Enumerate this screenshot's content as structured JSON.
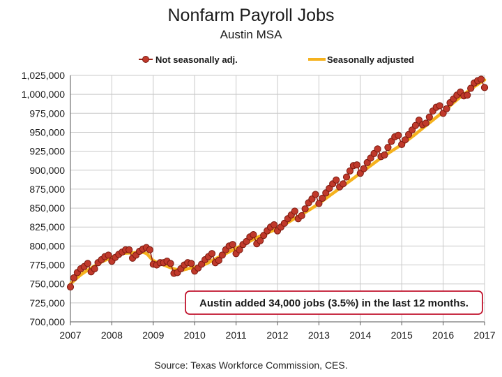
{
  "title": "Nonfarm Payroll Jobs",
  "subtitle": "Austin MSA",
  "source": "Source: Texas Workforce Commission, CES.",
  "annotation": "Austin added 34,000 jobs (3.5%) in the last 12 months.",
  "colors": {
    "nsa_fill": "#c0392b",
    "nsa_stroke": "#7b1a10",
    "sa_line": "#f5b21e",
    "grid": "#c8c8c8",
    "callout_border": "#c0122c"
  },
  "chart_data": {
    "type": "line",
    "title": "Nonfarm Payroll Jobs",
    "subtitle": "Austin MSA",
    "xlabel": "",
    "ylabel": "",
    "xlim": [
      2007,
      2017
    ],
    "ylim": [
      700000,
      1025000
    ],
    "x_ticks": [
      "2007",
      "2008",
      "2009",
      "2010",
      "2011",
      "2012",
      "2013",
      "2014",
      "2015",
      "2016",
      "2017"
    ],
    "y_ticks": [
      "700,000",
      "725,000",
      "750,000",
      "775,000",
      "800,000",
      "825,000",
      "850,000",
      "875,000",
      "900,000",
      "925,000",
      "950,000",
      "975,000",
      "1,000,000",
      "1,025,000"
    ],
    "grid": true,
    "legend_position": "top",
    "series": [
      {
        "name": "Not seasonally adj.",
        "style": "line-with-markers",
        "x": [
          2007.0,
          2007.083,
          2007.167,
          2007.25,
          2007.333,
          2007.417,
          2007.5,
          2007.583,
          2007.667,
          2007.75,
          2007.833,
          2007.917,
          2008.0,
          2008.083,
          2008.167,
          2008.25,
          2008.333,
          2008.417,
          2008.5,
          2008.583,
          2008.667,
          2008.75,
          2008.833,
          2008.917,
          2009.0,
          2009.083,
          2009.167,
          2009.25,
          2009.333,
          2009.417,
          2009.5,
          2009.583,
          2009.667,
          2009.75,
          2009.833,
          2009.917,
          2010.0,
          2010.083,
          2010.167,
          2010.25,
          2010.333,
          2010.417,
          2010.5,
          2010.583,
          2010.667,
          2010.75,
          2010.833,
          2010.917,
          2011.0,
          2011.083,
          2011.167,
          2011.25,
          2011.333,
          2011.417,
          2011.5,
          2011.583,
          2011.667,
          2011.75,
          2011.833,
          2011.917,
          2012.0,
          2012.083,
          2012.167,
          2012.25,
          2012.333,
          2012.417,
          2012.5,
          2012.583,
          2012.667,
          2012.75,
          2012.833,
          2012.917,
          2013.0,
          2013.083,
          2013.167,
          2013.25,
          2013.333,
          2013.417,
          2013.5,
          2013.583,
          2013.667,
          2013.75,
          2013.833,
          2013.917,
          2014.0,
          2014.083,
          2014.167,
          2014.25,
          2014.333,
          2014.417,
          2014.5,
          2014.583,
          2014.667,
          2014.75,
          2014.833,
          2014.917,
          2015.0,
          2015.083,
          2015.167,
          2015.25,
          2015.333,
          2015.417,
          2015.5,
          2015.583,
          2015.667,
          2015.75,
          2015.833,
          2015.917,
          2016.0,
          2016.083,
          2016.167,
          2016.25,
          2016.333,
          2016.417,
          2016.5,
          2016.583,
          2016.667,
          2016.75,
          2016.833,
          2016.917,
          2017.0
        ],
        "values": [
          746000,
          758000,
          765000,
          770000,
          773000,
          777000,
          766000,
          770000,
          778000,
          782000,
          786000,
          788000,
          780000,
          785000,
          789000,
          792000,
          795000,
          795000,
          784000,
          788000,
          793000,
          796000,
          798000,
          795000,
          776000,
          775000,
          778000,
          778000,
          780000,
          777000,
          764000,
          765000,
          770000,
          775000,
          778000,
          777000,
          767000,
          771000,
          776000,
          782000,
          786000,
          790000,
          778000,
          781000,
          788000,
          795000,
          800000,
          802000,
          790000,
          795000,
          802000,
          806000,
          812000,
          815000,
          803000,
          807000,
          814000,
          820000,
          825000,
          828000,
          820000,
          825000,
          830000,
          836000,
          841000,
          846000,
          836000,
          840000,
          849000,
          857000,
          862000,
          868000,
          856000,
          863000,
          870000,
          876000,
          882000,
          887000,
          878000,
          882000,
          891000,
          899000,
          906000,
          907000,
          896000,
          902000,
          910000,
          916000,
          922000,
          928000,
          918000,
          920000,
          930000,
          938000,
          944000,
          946000,
          934000,
          940000,
          947000,
          953000,
          959000,
          966000,
          960000,
          962000,
          970000,
          978000,
          983000,
          985000,
          975000,
          981000,
          989000,
          994000,
          999000,
          1003000,
          998000,
          999000,
          1008000,
          1015000,
          1018000,
          1020000,
          1009000
        ]
      },
      {
        "name": "Seasonally adjusted",
        "style": "line",
        "x": [
          2007.0,
          2007.25,
          2007.5,
          2007.75,
          2008.0,
          2008.25,
          2008.5,
          2008.667,
          2008.833,
          2009.0,
          2009.25,
          2009.5,
          2009.667,
          2009.833,
          2010.0,
          2010.25,
          2010.5,
          2010.75,
          2011.0,
          2011.25,
          2011.5,
          2011.75,
          2012.0,
          2012.25,
          2012.5,
          2012.75,
          2013.0,
          2013.25,
          2013.5,
          2013.75,
          2014.0,
          2014.25,
          2014.5,
          2014.75,
          2015.0,
          2015.25,
          2015.5,
          2015.75,
          2016.0,
          2016.25,
          2016.5,
          2016.75,
          2017.0
        ],
        "values": [
          750000,
          762000,
          771000,
          779000,
          785000,
          790000,
          791000,
          792000,
          790000,
          781000,
          775000,
          770000,
          768000,
          770000,
          772000,
          776000,
          783000,
          790000,
          797000,
          804000,
          811000,
          817000,
          823000,
          831000,
          839000,
          847000,
          856000,
          866000,
          876000,
          886000,
          896000,
          906000,
          916000,
          925000,
          934000,
          944000,
          955000,
          966000,
          977000,
          989000,
          1000000,
          1010000,
          1019000
        ]
      }
    ]
  }
}
